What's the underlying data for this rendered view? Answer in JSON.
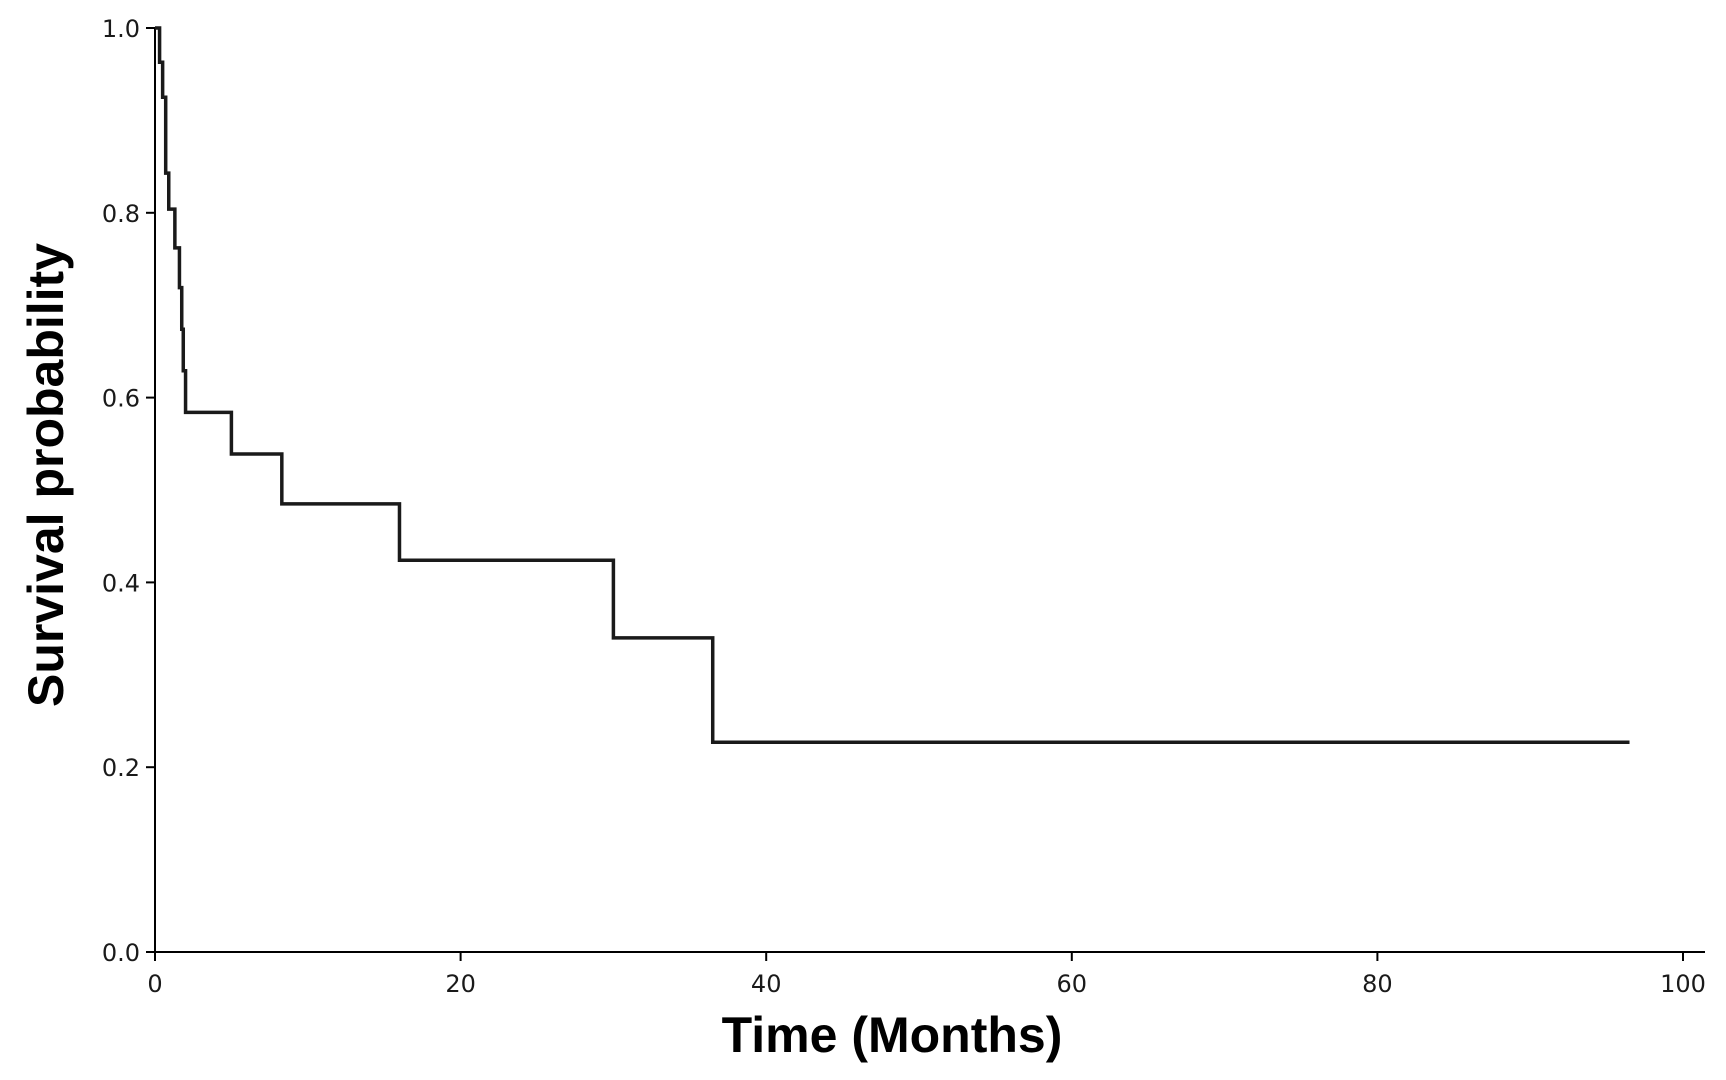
{
  "chart_data": {
    "type": "line",
    "subtype": "step",
    "title": "",
    "xlabel": "Time (Months)",
    "ylabel": "Survival probability",
    "xlim": [
      0,
      100
    ],
    "ylim": [
      0,
      1.0
    ],
    "xticks": [
      0,
      20,
      40,
      60,
      80,
      100
    ],
    "yticks": [
      0.0,
      0.2,
      0.4,
      0.6,
      0.8,
      1.0
    ],
    "xtick_labels": [
      "0",
      "20",
      "40",
      "60",
      "80",
      "100"
    ],
    "ytick_labels": [
      "0.0",
      "0.2",
      "0.4",
      "0.6",
      "0.8",
      "1.0"
    ],
    "grid": false,
    "legend": null,
    "line_color": "#1a1a1a",
    "series": [
      {
        "x": [
          0,
          0.3,
          0.5,
          0.7,
          0.9,
          1.3,
          1.6,
          1.75,
          1.85,
          2.0,
          5.0,
          8.3,
          16.0,
          30.0,
          36.5,
          96.5
        ],
        "y": [
          1.0,
          0.963,
          0.925,
          0.843,
          0.804,
          0.762,
          0.719,
          0.674,
          0.629,
          0.584,
          0.539,
          0.485,
          0.424,
          0.34,
          0.227,
          0.227
        ]
      }
    ]
  }
}
